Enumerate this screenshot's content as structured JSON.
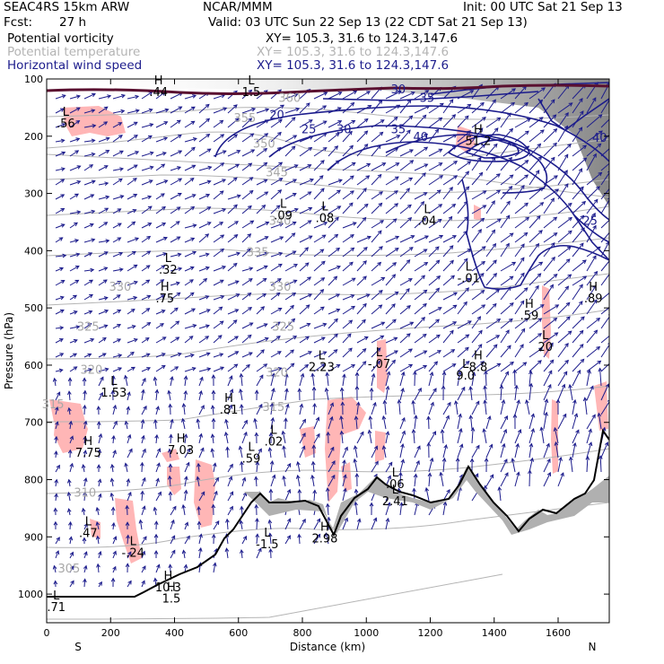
{
  "header": {
    "model": "SEAC4RS 15km ARW",
    "org": "NCAR/MMM",
    "init": "Init: 00 UTC Sat 21 Sep 13",
    "fcst_label": "Fcst:",
    "fcst_value": "27 h",
    "valid": "Valid: 03 UTC Sun 22 Sep 13 (22 CDT Sat 21 Sep 13)"
  },
  "fields": [
    {
      "name": "Potential vorticity",
      "xy": "XY= 105.3, 31.6 to 124.3,147.6",
      "color": "#000000"
    },
    {
      "name": "Potential temperature",
      "xy": "XY= 105.3, 31.6 to 124.3,147.6",
      "color": "#b4b4b4"
    },
    {
      "name": "Horizontal wind speed",
      "xy": "XY= 105.3, 31.6 to 124.3,147.6",
      "color": "#1c1c8c"
    }
  ],
  "colors": {
    "pv_fill": "#ffb6b6",
    "theta": "#b4b4b4",
    "wind": "#1c1c8c",
    "tropopause": "#5a1030",
    "terrain": "#000000",
    "terrain_fill": "#b0b0b0"
  },
  "chart_data": {
    "type": "cross-section",
    "xlabel": "Distance (km)",
    "ylabel": "Pressure (hPa)",
    "xlim": [
      0,
      1760
    ],
    "ylim": [
      1050,
      100
    ],
    "x_ticks": [
      0,
      200,
      400,
      600,
      800,
      1000,
      1200,
      1400,
      1600
    ],
    "y_ticks": [
      100,
      200,
      300,
      400,
      500,
      600,
      700,
      800,
      900,
      1000
    ],
    "x_ticks_labels": [
      "0",
      "200",
      "400",
      "600",
      "800",
      "1000",
      "1200",
      "1400",
      "1600"
    ],
    "y_ticks_labels": [
      "100",
      "200",
      "300",
      "400",
      "500",
      "600",
      "700",
      "800",
      "900",
      "1000"
    ],
    "end_labels": {
      "left": "S",
      "right": "N"
    },
    "wind_speed_contours": [
      {
        "value": 20,
        "label": "20",
        "x": 720,
        "p": 170
      },
      {
        "value": 25,
        "label": "25",
        "x": 820,
        "p": 195
      },
      {
        "value": 30,
        "label": "30",
        "x": 930,
        "p": 195
      },
      {
        "value": 35,
        "label": "35",
        "x": 1100,
        "p": 195
      },
      {
        "value": 30,
        "label": "30",
        "x": 1100,
        "p": 125
      },
      {
        "value": 35,
        "label": "35",
        "x": 1190,
        "p": 140
      },
      {
        "value": 40,
        "label": "40",
        "x": 1170,
        "p": 208
      },
      {
        "value": 25,
        "label": "25",
        "x": 1700,
        "p": 355
      },
      {
        "value": 40,
        "label": "40",
        "x": 1730,
        "p": 210
      }
    ],
    "theta_contours": [
      {
        "value": 315,
        "label": "315",
        "x": 20,
        "p": 675
      },
      {
        "value": 320,
        "label": "320",
        "x": 140,
        "p": 615
      },
      {
        "value": 325,
        "label": "325",
        "x": 130,
        "p": 540
      },
      {
        "value": 330,
        "label": "330",
        "x": 230,
        "p": 470
      },
      {
        "value": 335,
        "label": "335",
        "x": 660,
        "p": 410
      },
      {
        "value": 340,
        "label": "340",
        "x": 730,
        "p": 355
      },
      {
        "value": 345,
        "label": "345",
        "x": 720,
        "p": 270
      },
      {
        "value": 350,
        "label": "350",
        "x": 680,
        "p": 220
      },
      {
        "value": 355,
        "label": "355",
        "x": 620,
        "p": 175
      },
      {
        "value": 360,
        "label": "360",
        "x": 760,
        "p": 140
      },
      {
        "value": 330,
        "label": "330",
        "x": 730,
        "p": 470
      },
      {
        "value": 325,
        "label": "325",
        "x": 740,
        "p": 540
      },
      {
        "value": 320,
        "label": "320",
        "x": 720,
        "p": 620
      },
      {
        "value": 315,
        "label": "315",
        "x": 710,
        "p": 680
      },
      {
        "value": 310,
        "label": "310",
        "x": 120,
        "p": 830
      },
      {
        "value": 305,
        "label": "305",
        "x": 70,
        "p": 962
      }
    ],
    "extrema": [
      {
        "type": "L",
        "value": ".56",
        "x": 60,
        "p": 185
      },
      {
        "type": "L",
        "value": ".09",
        "x": 740,
        "p": 345
      },
      {
        "type": "L",
        "value": ".08",
        "x": 870,
        "p": 350
      },
      {
        "type": "L",
        "value": ".04",
        "x": 1190,
        "p": 355
      },
      {
        "type": "L",
        "value": ".32",
        "x": 380,
        "p": 440
      },
      {
        "type": "H",
        "value": ".75",
        "x": 370,
        "p": 490
      },
      {
        "type": "L",
        "value": "-.01",
        "x": 1320,
        "p": 455
      },
      {
        "type": "H",
        "value": ".59",
        "x": 1510,
        "p": 520
      },
      {
        "type": "H",
        "value": ".89",
        "x": 1710,
        "p": 490
      },
      {
        "type": "H",
        "value": "51.2",
        "x": 1350,
        "p": 215
      },
      {
        "type": "L",
        "value": "2.23",
        "x": 860,
        "p": 610
      },
      {
        "type": "L",
        "value": "-.07",
        "x": 1040,
        "p": 605
      },
      {
        "type": "L",
        "value": "9.0",
        "x": 1310,
        "p": 625
      },
      {
        "type": "H",
        "value": "8.8",
        "x": 1350,
        "p": 610
      },
      {
        "type": "L",
        "value": "1.53",
        "x": 210,
        "p": 655
      },
      {
        "type": "H",
        "value": ".81",
        "x": 570,
        "p": 685
      },
      {
        "type": "H",
        "value": "7.75",
        "x": 130,
        "p": 760
      },
      {
        "type": "H",
        "value": "7.03",
        "x": 420,
        "p": 755
      },
      {
        "type": "L",
        "value": ".59",
        "x": 640,
        "p": 770
      },
      {
        "type": "L",
        "value": ".02",
        "x": 710,
        "p": 740
      },
      {
        "type": "L",
        "value": ".06",
        "x": 1090,
        "p": 815
      },
      {
        "type": "L",
        "value": "2.41",
        "x": 1090,
        "p": 845
      },
      {
        "type": "L",
        "value": "20",
        "x": 1560,
        "p": 575
      },
      {
        "type": "L",
        "value": ".47",
        "x": 130,
        "p": 900
      },
      {
        "type": "L",
        "value": "-.24",
        "x": 270,
        "p": 935
      },
      {
        "type": "H",
        "value": "10.3",
        "x": 380,
        "p": 995
      },
      {
        "type": "H",
        "value": "1.5",
        "x": 390,
        "p": 1015
      },
      {
        "type": "L",
        "value": ".71",
        "x": 30,
        "p": 1030
      },
      {
        "type": "L",
        "value": "-1.5",
        "x": 690,
        "p": 920
      },
      {
        "type": "H",
        "value": "2.98",
        "x": 870,
        "p": 910
      },
      {
        "type": "H",
        "value": ".44",
        "x": 350,
        "p": 130
      },
      {
        "type": "L",
        "value": "1.5",
        "x": 640,
        "p": 130
      }
    ]
  }
}
